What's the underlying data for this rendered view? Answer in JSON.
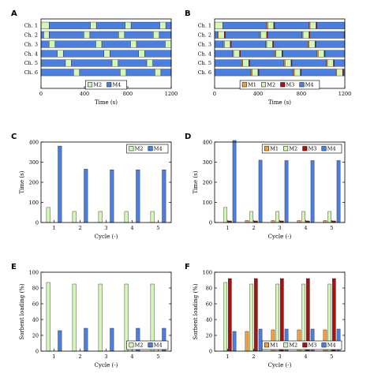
{
  "colors": {
    "M1": "#f5a13a",
    "M2": "#d4f7b7",
    "M3": "#a31414",
    "M4": "#4a7ee0",
    "axis": "#000000"
  },
  "chart_data": [
    {
      "id": "A",
      "type": "gantt",
      "letter": "A",
      "xlabel": "Time (s)",
      "ylabel": "",
      "xlim": [
        0,
        1200
      ],
      "xticks": [
        "0",
        "400",
        "800",
        "1200"
      ],
      "xtick_values": [
        0,
        400,
        800,
        1200
      ],
      "rows": [
        "Ch. 1",
        "Ch. 2",
        "Ch. 3",
        "Ch. 4",
        "Ch. 5",
        "Ch. 6"
      ],
      "legend": [
        "M2",
        "M4"
      ],
      "legend_position": "bottom-center",
      "segments": [
        [
          [
            "M2",
            0,
            75
          ],
          [
            "M4",
            75,
            455
          ],
          [
            "M2",
            455,
            510
          ],
          [
            "M4",
            510,
            775
          ],
          [
            "M2",
            775,
            830
          ],
          [
            "M4",
            830,
            1095
          ],
          [
            "M2",
            1095,
            1150
          ],
          [
            "M4",
            1150,
            1200
          ]
        ],
        [
          [
            "M4",
            0,
            25
          ],
          [
            "M2",
            25,
            75
          ],
          [
            "M4",
            75,
            395
          ],
          [
            "M2",
            395,
            450
          ],
          [
            "M4",
            450,
            715
          ],
          [
            "M2",
            715,
            770
          ],
          [
            "M4",
            770,
            1035
          ],
          [
            "M2",
            1035,
            1090
          ],
          [
            "M4",
            1090,
            1200
          ]
        ],
        [
          [
            "M4",
            0,
            75
          ],
          [
            "M2",
            75,
            130
          ],
          [
            "M4",
            130,
            505
          ],
          [
            "M2",
            505,
            560
          ],
          [
            "M4",
            560,
            825
          ],
          [
            "M2",
            825,
            880
          ],
          [
            "M4",
            880,
            1145
          ],
          [
            "M2",
            1145,
            1200
          ]
        ],
        [
          [
            "M4",
            0,
            150
          ],
          [
            "M2",
            150,
            205
          ],
          [
            "M4",
            205,
            580
          ],
          [
            "M2",
            580,
            635
          ],
          [
            "M4",
            635,
            900
          ],
          [
            "M2",
            900,
            955
          ],
          [
            "M4",
            955,
            1200
          ]
        ],
        [
          [
            "M4",
            0,
            225
          ],
          [
            "M2",
            225,
            280
          ],
          [
            "M4",
            280,
            655
          ],
          [
            "M2",
            655,
            710
          ],
          [
            "M4",
            710,
            975
          ],
          [
            "M2",
            975,
            1030
          ],
          [
            "M4",
            1030,
            1200
          ]
        ],
        [
          [
            "M4",
            0,
            300
          ],
          [
            "M2",
            300,
            355
          ],
          [
            "M4",
            355,
            730
          ],
          [
            "M2",
            730,
            785
          ],
          [
            "M4",
            785,
            1050
          ],
          [
            "M2",
            1050,
            1105
          ],
          [
            "M4",
            1105,
            1200
          ]
        ]
      ]
    },
    {
      "id": "B",
      "type": "gantt",
      "letter": "B",
      "xlabel": "Time (s)",
      "ylabel": "",
      "xlim": [
        0,
        1200
      ],
      "xticks": [
        "0",
        "400",
        "800",
        "1200"
      ],
      "xtick_values": [
        0,
        400,
        800,
        1200
      ],
      "rows": [
        "Ch. 1",
        "Ch. 2",
        "Ch. 3",
        "Ch. 4",
        "Ch. 5",
        "Ch. 6"
      ],
      "legend": [
        "M1",
        "M2",
        "M3",
        "M4"
      ],
      "legend_position": "bottom-center",
      "segments": [
        [
          [
            "M2",
            0,
            75
          ],
          [
            "M4",
            75,
            480
          ],
          [
            "M1",
            480,
            490
          ],
          [
            "M2",
            490,
            545
          ],
          [
            "M3",
            545,
            553
          ],
          [
            "M4",
            553,
            870
          ],
          [
            "M1",
            870,
            880
          ],
          [
            "M2",
            880,
            935
          ],
          [
            "M3",
            935,
            943
          ],
          [
            "M4",
            943,
            1200
          ]
        ],
        [
          [
            "M4",
            0,
            25
          ],
          [
            "M1",
            25,
            35
          ],
          [
            "M2",
            35,
            90
          ],
          [
            "M3",
            90,
            98
          ],
          [
            "M4",
            98,
            415
          ],
          [
            "M1",
            415,
            425
          ],
          [
            "M2",
            425,
            480
          ],
          [
            "M3",
            480,
            488
          ],
          [
            "M4",
            488,
            805
          ],
          [
            "M1",
            805,
            815
          ],
          [
            "M2",
            815,
            870
          ],
          [
            "M3",
            870,
            878
          ],
          [
            "M4",
            878,
            1195
          ],
          [
            "M1",
            1195,
            1200
          ]
        ],
        [
          [
            "M4",
            0,
            80
          ],
          [
            "M1",
            80,
            90
          ],
          [
            "M2",
            90,
            145
          ],
          [
            "M3",
            145,
            153
          ],
          [
            "M4",
            153,
            470
          ],
          [
            "M1",
            470,
            480
          ],
          [
            "M2",
            480,
            535
          ],
          [
            "M3",
            535,
            543
          ],
          [
            "M4",
            543,
            860
          ],
          [
            "M1",
            860,
            870
          ],
          [
            "M2",
            870,
            925
          ],
          [
            "M3",
            925,
            933
          ],
          [
            "M4",
            933,
            1200
          ]
        ],
        [
          [
            "M4",
            0,
            165
          ],
          [
            "M1",
            165,
            175
          ],
          [
            "M2",
            175,
            230
          ],
          [
            "M3",
            230,
            238
          ],
          [
            "M4",
            238,
            555
          ],
          [
            "M1",
            555,
            565
          ],
          [
            "M2",
            565,
            620
          ],
          [
            "M3",
            620,
            628
          ],
          [
            "M4",
            628,
            945
          ],
          [
            "M1",
            945,
            955
          ],
          [
            "M2",
            955,
            1010
          ],
          [
            "M3",
            1010,
            1018
          ],
          [
            "M4",
            1018,
            1200
          ]
        ],
        [
          [
            "M4",
            0,
            250
          ],
          [
            "M1",
            250,
            260
          ],
          [
            "M2",
            260,
            315
          ],
          [
            "M3",
            315,
            323
          ],
          [
            "M4",
            323,
            640
          ],
          [
            "M1",
            640,
            650
          ],
          [
            "M2",
            650,
            705
          ],
          [
            "M3",
            705,
            713
          ],
          [
            "M4",
            713,
            1030
          ],
          [
            "M1",
            1030,
            1040
          ],
          [
            "M2",
            1040,
            1095
          ],
          [
            "M3",
            1095,
            1103
          ],
          [
            "M4",
            1103,
            1200
          ]
        ],
        [
          [
            "M4",
            0,
            335
          ],
          [
            "M1",
            335,
            345
          ],
          [
            "M2",
            345,
            400
          ],
          [
            "M3",
            400,
            408
          ],
          [
            "M4",
            408,
            725
          ],
          [
            "M1",
            725,
            735
          ],
          [
            "M2",
            735,
            790
          ],
          [
            "M3",
            790,
            798
          ],
          [
            "M4",
            798,
            1115
          ],
          [
            "M1",
            1115,
            1125
          ],
          [
            "M2",
            1125,
            1180
          ],
          [
            "M3",
            1180,
            1188
          ],
          [
            "M4",
            1188,
            1200
          ]
        ]
      ]
    },
    {
      "id": "C",
      "type": "bar",
      "letter": "C",
      "xlabel": "Cycle (-)",
      "ylabel": "Time (s)",
      "ylim": [
        0,
        400
      ],
      "yticks": [
        0,
        100,
        200,
        300,
        400
      ],
      "categories": [
        "1",
        "2",
        "3",
        "4",
        "5"
      ],
      "legend_position": "top-right",
      "series": [
        {
          "name": "M2",
          "values": [
            75,
            55,
            55,
            55,
            55
          ]
        },
        {
          "name": "M4",
          "values": [
            380,
            265,
            262,
            262,
            262
          ]
        }
      ]
    },
    {
      "id": "D",
      "type": "bar",
      "letter": "D",
      "xlabel": "Cycle (-)",
      "ylabel": "Time (s)",
      "ylim": [
        0,
        400
      ],
      "yticks": [
        0,
        100,
        200,
        300,
        400
      ],
      "categories": [
        "1",
        "2",
        "3",
        "4",
        "5"
      ],
      "legend_position": "top-right",
      "series": [
        {
          "name": "M1",
          "values": [
            0,
            10,
            10,
            10,
            10
          ]
        },
        {
          "name": "M2",
          "values": [
            75,
            55,
            55,
            55,
            55
          ]
        },
        {
          "name": "M3",
          "values": [
            8,
            8,
            8,
            8,
            8
          ]
        },
        {
          "name": "M4",
          "values": [
            408,
            310,
            308,
            308,
            308
          ]
        }
      ]
    },
    {
      "id": "E",
      "type": "bar",
      "letter": "E",
      "xlabel": "Cycle (-)",
      "ylabel": "Sorbent loading (%)",
      "ylim": [
        0,
        100
      ],
      "yticks": [
        0,
        20,
        40,
        60,
        80,
        100
      ],
      "categories": [
        "1",
        "2",
        "3",
        "4",
        "5"
      ],
      "legend_position": "bottom-right",
      "series": [
        {
          "name": "M2",
          "values": [
            87,
            85,
            85,
            85,
            85
          ]
        },
        {
          "name": "M4",
          "values": [
            26,
            29,
            29,
            29,
            29
          ]
        }
      ]
    },
    {
      "id": "F",
      "type": "bar",
      "letter": "F",
      "xlabel": "Cycle (-)",
      "ylabel": "Sorbent loading (%)",
      "ylim": [
        0,
        100
      ],
      "yticks": [
        0,
        20,
        40,
        60,
        80,
        100
      ],
      "categories": [
        "1",
        "2",
        "3",
        "4",
        "5"
      ],
      "legend_position": "bottom-right",
      "series": [
        {
          "name": "M1",
          "values": [
            0,
            25,
            27,
            27,
            27
          ]
        },
        {
          "name": "M2",
          "values": [
            87,
            85,
            85,
            85,
            85
          ]
        },
        {
          "name": "M3",
          "values": [
            92,
            92,
            92,
            92,
            92
          ]
        },
        {
          "name": "M4",
          "values": [
            25,
            28,
            28,
            28,
            28
          ]
        }
      ]
    }
  ]
}
